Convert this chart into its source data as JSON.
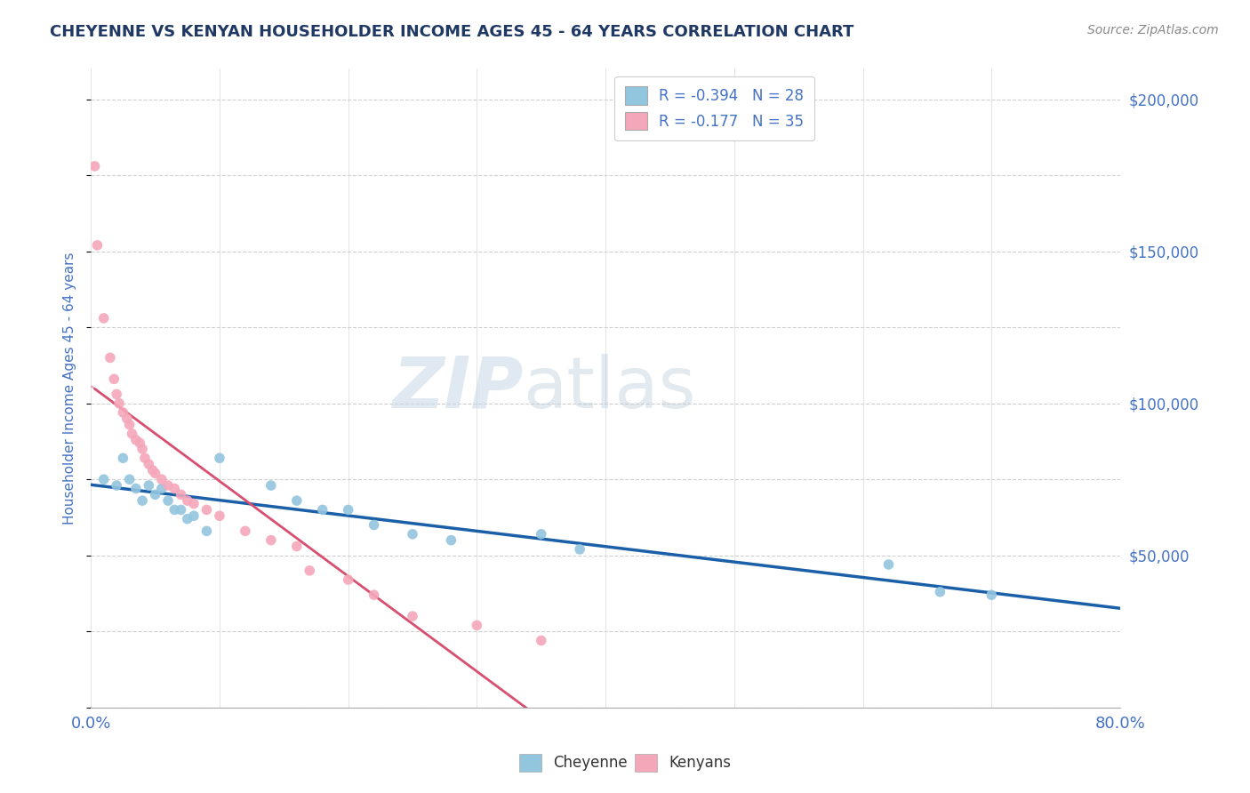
{
  "title": "CHEYENNE VS KENYAN HOUSEHOLDER INCOME AGES 45 - 64 YEARS CORRELATION CHART",
  "source": "Source: ZipAtlas.com",
  "ylabel": "Householder Income Ages 45 - 64 years",
  "watermark_zip": "ZIP",
  "watermark_atlas": "atlas",
  "legend_R1": "R = -0.394",
  "legend_N1": "N = 28",
  "legend_R2": "R = -0.177",
  "legend_N2": "N = 35",
  "cheyenne_color": "#92c5de",
  "kenyan_color": "#f4a7b9",
  "cheyenne_line_color": "#1a5fa8",
  "kenyan_line_color": "#d94f70",
  "kenyan_line_dashed": true,
  "cheyenne_scatter": [
    [
      1.0,
      75000
    ],
    [
      2.0,
      73000
    ],
    [
      2.5,
      82000
    ],
    [
      3.0,
      75000
    ],
    [
      3.5,
      72000
    ],
    [
      4.0,
      68000
    ],
    [
      4.5,
      73000
    ],
    [
      5.0,
      70000
    ],
    [
      5.5,
      72000
    ],
    [
      6.0,
      68000
    ],
    [
      6.5,
      65000
    ],
    [
      7.0,
      65000
    ],
    [
      7.5,
      62000
    ],
    [
      8.0,
      63000
    ],
    [
      9.0,
      58000
    ],
    [
      10.0,
      82000
    ],
    [
      14.0,
      73000
    ],
    [
      16.0,
      68000
    ],
    [
      18.0,
      65000
    ],
    [
      20.0,
      65000
    ],
    [
      22.0,
      60000
    ],
    [
      25.0,
      57000
    ],
    [
      28.0,
      55000
    ],
    [
      35.0,
      57000
    ],
    [
      38.0,
      52000
    ],
    [
      62.0,
      47000
    ],
    [
      66.0,
      38000
    ],
    [
      70.0,
      37000
    ]
  ],
  "kenyan_scatter": [
    [
      0.3,
      178000
    ],
    [
      0.5,
      152000
    ],
    [
      1.0,
      128000
    ],
    [
      1.5,
      115000
    ],
    [
      1.8,
      108000
    ],
    [
      2.0,
      103000
    ],
    [
      2.2,
      100000
    ],
    [
      2.5,
      97000
    ],
    [
      2.8,
      95000
    ],
    [
      3.0,
      93000
    ],
    [
      3.2,
      90000
    ],
    [
      3.5,
      88000
    ],
    [
      3.8,
      87000
    ],
    [
      4.0,
      85000
    ],
    [
      4.2,
      82000
    ],
    [
      4.5,
      80000
    ],
    [
      4.8,
      78000
    ],
    [
      5.0,
      77000
    ],
    [
      5.5,
      75000
    ],
    [
      6.0,
      73000
    ],
    [
      6.5,
      72000
    ],
    [
      7.0,
      70000
    ],
    [
      7.5,
      68000
    ],
    [
      8.0,
      67000
    ],
    [
      9.0,
      65000
    ],
    [
      10.0,
      63000
    ],
    [
      12.0,
      58000
    ],
    [
      14.0,
      55000
    ],
    [
      16.0,
      53000
    ],
    [
      17.0,
      45000
    ],
    [
      20.0,
      42000
    ],
    [
      22.0,
      37000
    ],
    [
      25.0,
      30000
    ],
    [
      30.0,
      27000
    ],
    [
      35.0,
      22000
    ]
  ],
  "xlim": [
    0,
    80
  ],
  "ylim": [
    0,
    210000
  ],
  "yticks": [
    0,
    50000,
    100000,
    150000,
    200000
  ],
  "ytick_labels_right": [
    "",
    "$50,000",
    "$100,000",
    "$150,000",
    "$200,000"
  ],
  "xtick_positions": [
    0,
    10,
    20,
    30,
    40,
    50,
    60,
    70,
    80
  ],
  "title_color": "#1f3864",
  "axis_label_color": "#4472c4",
  "tick_color": "#4472c4",
  "background_color": "#ffffff",
  "grid_color": "#d0d0d0"
}
